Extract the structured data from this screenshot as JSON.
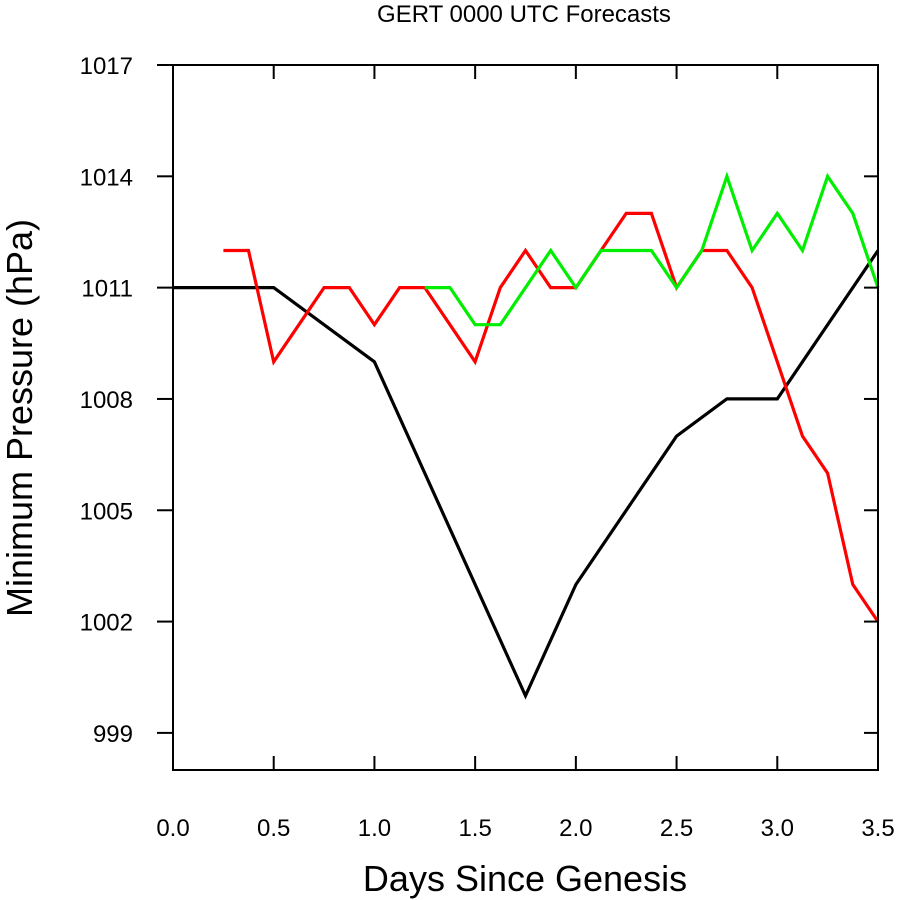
{
  "chart_data": {
    "type": "line",
    "title": "GERT 0000 UTC Forecasts",
    "xlabel": "Days Since Genesis",
    "ylabel": "Minimum Pressure (hPa)",
    "xlim": [
      0.0,
      3.5
    ],
    "ylim": [
      998,
      1017
    ],
    "xticks": [
      0.0,
      0.5,
      1.0,
      1.5,
      2.0,
      2.5,
      3.0,
      3.5
    ],
    "xtick_labels": [
      "0.0",
      "0.5",
      "1.0",
      "1.5",
      "2.0",
      "2.5",
      "3.0",
      "3.5"
    ],
    "yticks": [
      999,
      1002,
      1005,
      1008,
      1011,
      1014,
      1017
    ],
    "ytick_labels": [
      "999",
      "1002",
      "1005",
      "1008",
      "1011",
      "1014",
      "1017"
    ],
    "grid": false,
    "series": [
      {
        "color": "#000000",
        "x": [
          0.0,
          0.5,
          1.0,
          1.75,
          2.0,
          2.5,
          2.75,
          3.0,
          3.5
        ],
        "y": [
          1011,
          1011,
          1009,
          1000,
          1003,
          1007,
          1008,
          1008,
          1012
        ]
      },
      {
        "color": "#ff0000",
        "x": [
          0.25,
          0.375,
          0.5,
          0.75,
          0.875,
          1.0,
          1.125,
          1.25,
          1.5,
          1.625,
          1.75,
          1.875,
          2.0,
          2.125,
          2.25,
          2.375,
          2.5,
          2.625,
          2.75,
          2.875,
          3.125,
          3.25,
          3.375,
          3.5
        ],
        "y": [
          1012,
          1012,
          1009,
          1011,
          1011,
          1010,
          1011,
          1011,
          1009,
          1011,
          1012,
          1011,
          1011,
          1012,
          1013,
          1013,
          1011,
          1012,
          1012,
          1011,
          1007,
          1006,
          1003,
          1002
        ]
      },
      {
        "color": "#00ee00",
        "x": [
          1.25,
          1.375,
          1.5,
          1.625,
          1.875,
          2.0,
          2.125,
          2.25,
          2.375,
          2.5,
          2.625,
          2.75,
          2.875,
          3.0,
          3.125,
          3.25,
          3.375,
          3.5
        ],
        "y": [
          1011,
          1011,
          1010,
          1010,
          1012,
          1011,
          1012,
          1012,
          1012,
          1011,
          1012,
          1014,
          1012,
          1013,
          1012,
          1014,
          1013,
          1011
        ]
      }
    ]
  }
}
